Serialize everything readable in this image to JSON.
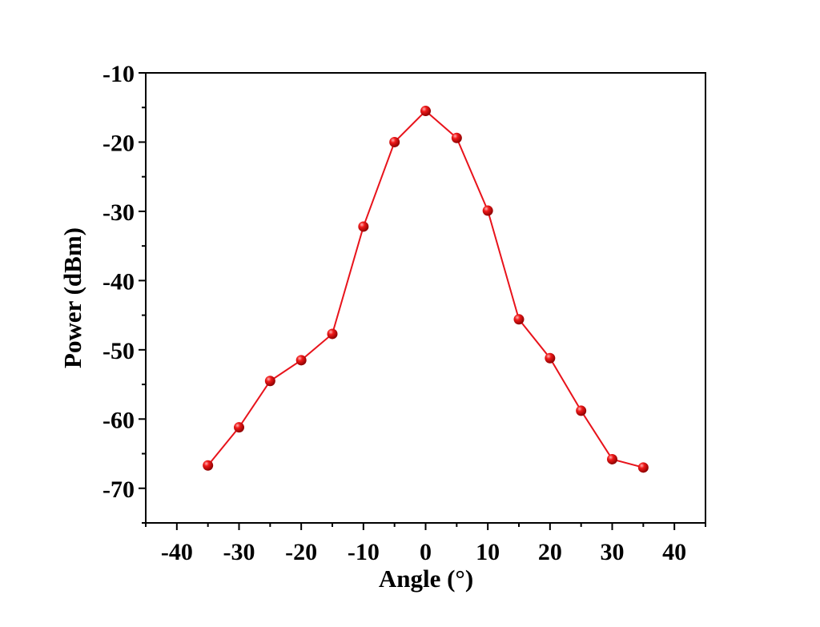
{
  "chart_data": {
    "type": "line",
    "title": "",
    "xlabel": "Angle (°)",
    "ylabel": "Power (dBm)",
    "xlim": [
      -45,
      45
    ],
    "ylim": [
      -75,
      -10
    ],
    "xticks": [
      -40,
      -30,
      -20,
      -10,
      0,
      10,
      20,
      30,
      40
    ],
    "yticks": [
      -10,
      -20,
      -30,
      -40,
      -50,
      -60,
      -70
    ],
    "grid": false,
    "legend": "none",
    "series": [
      {
        "color": "#e8131b",
        "marker": "sphere",
        "x": [
          -35,
          -30,
          -25,
          -20,
          -15,
          -10,
          -5,
          0,
          5,
          10,
          15,
          20,
          25,
          30,
          35
        ],
        "y": [
          -66.7,
          -61.2,
          -54.5,
          -51.5,
          -47.7,
          -32.2,
          -20.0,
          -15.5,
          -19.4,
          -29.9,
          -45.6,
          -51.2,
          -58.8,
          -65.8,
          -67.0
        ]
      }
    ]
  }
}
